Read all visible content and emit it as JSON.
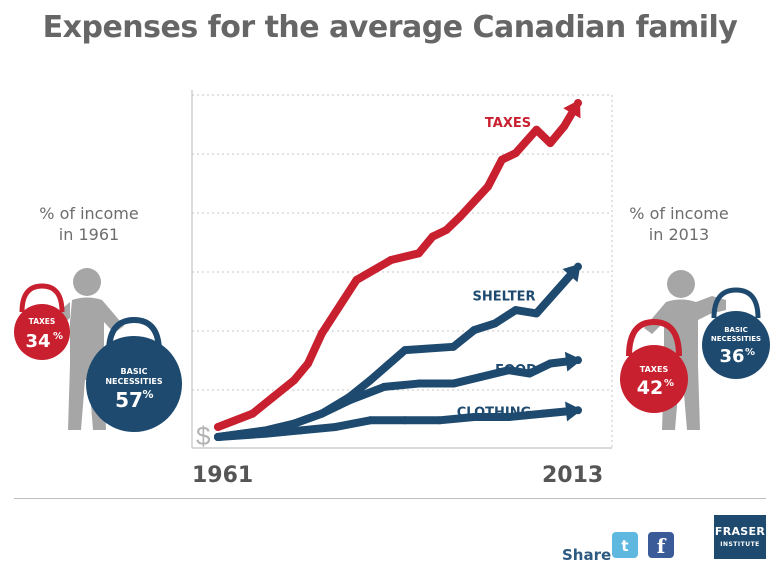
{
  "title": "Expenses for the average Canadian family",
  "left_panel": {
    "caption_line1": "% of income",
    "caption_line2": "in 1961",
    "taxes_label": "TAXES",
    "taxes_value": "34",
    "necessities_label_line1": "BASIC",
    "necessities_label_line2": "NECESSITIES",
    "necessities_value": "57",
    "percent_sign": "%"
  },
  "right_panel": {
    "caption_line1": "% of income",
    "caption_line2": "in 2013",
    "taxes_label": "TAXES",
    "taxes_value": "42",
    "necessities_label_line1": "BASIC",
    "necessities_label_line2": "NECESSITIES",
    "necessities_value": "36",
    "percent_sign": "%"
  },
  "footer": {
    "share_label": "Share",
    "twitter_icon": "twitter-icon",
    "facebook_icon": "facebook-icon",
    "facebook_glyph": "f",
    "twitter_glyph": "t",
    "logo_line1": "FRASER",
    "logo_line2": "INSTITUTE"
  },
  "colors": {
    "taxes": "#c8202f",
    "necessities": "#1e4a6f",
    "figure": "#a6a6a6",
    "title": "#666666"
  },
  "chart_data": {
    "type": "line",
    "title": "Expenses for the average Canadian family",
    "xlabel": "",
    "ylabel": "",
    "y_axis_symbol": "$",
    "x_tick_labels": [
      "1961",
      "2013"
    ],
    "xlim": [
      1961,
      2013
    ],
    "ylim": [
      0,
      100
    ],
    "grid": true,
    "series": [
      {
        "name": "TAXES",
        "color": "#c8202f",
        "x": [
          1961,
          1966,
          1969,
          1972,
          1974,
          1976,
          1981,
          1986,
          1990,
          1992,
          1994,
          1996,
          2000,
          2002,
          2004,
          2007,
          2009,
          2011,
          2013
        ],
        "y": [
          3,
          7,
          12,
          17,
          22,
          31,
          47,
          53,
          55,
          60,
          62,
          66,
          75,
          83,
          85,
          92,
          88,
          93,
          100
        ]
      },
      {
        "name": "SHELTER",
        "color": "#1e4a6f",
        "x": [
          1961,
          1968,
          1972,
          1976,
          1980,
          1983,
          1988,
          1995,
          1998,
          2001,
          2004,
          2007,
          2010,
          2013
        ],
        "y": [
          0,
          2,
          4,
          7,
          12,
          17,
          26,
          27,
          32,
          34,
          38,
          37,
          44,
          51
        ]
      },
      {
        "name": "FOOD",
        "color": "#1e4a6f",
        "x": [
          1961,
          1968,
          1972,
          1976,
          1980,
          1985,
          1990,
          1995,
          1999,
          2003,
          2006,
          2009,
          2013
        ],
        "y": [
          0,
          2,
          4,
          7,
          11,
          15,
          16,
          16,
          18,
          20,
          19,
          22,
          23
        ]
      },
      {
        "name": "CLOTHING",
        "color": "#1e4a6f",
        "x": [
          1961,
          1968,
          1973,
          1978,
          1983,
          1988,
          1993,
          1998,
          2003,
          2008,
          2013
        ],
        "y": [
          0,
          1,
          2,
          3,
          5,
          5,
          5,
          6,
          6,
          7,
          8
        ]
      }
    ]
  }
}
